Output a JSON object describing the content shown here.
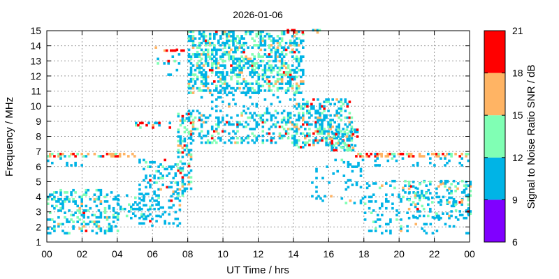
{
  "chart_data": {
    "type": "heatmap",
    "title": "2026-01-06",
    "xlabel": "UT Time / hrs",
    "ylabel": "Frequency / MHz",
    "colorbar_label": "Signal to Noise Ratio SNR / dB",
    "xlim": [
      0,
      24
    ],
    "ylim": [
      1,
      15
    ],
    "x_ticks": [
      "00",
      "02",
      "04",
      "06",
      "08",
      "10",
      "12",
      "14",
      "16",
      "18",
      "20",
      "22",
      "00"
    ],
    "y_ticks": [
      "1",
      "2",
      "3",
      "4",
      "5",
      "6",
      "7",
      "8",
      "9",
      "10",
      "11",
      "12",
      "13",
      "14",
      "15"
    ],
    "grid": true,
    "colorbar": {
      "ticks": [
        "6",
        "9",
        "12",
        "15",
        "18",
        "21"
      ],
      "bands": [
        {
          "from": 6,
          "to": 9,
          "color": "#8000ff"
        },
        {
          "from": 9,
          "to": 12,
          "color": "#00b4e6"
        },
        {
          "from": 12,
          "to": 15,
          "color": "#80ffb4"
        },
        {
          "from": 15,
          "to": 18,
          "color": "#ffb464"
        },
        {
          "from": 18,
          "to": 21,
          "color": "#ff0000"
        }
      ]
    },
    "clusters": [
      {
        "x": [
          0,
          5.0
        ],
        "y": [
          6.6,
          6.85
        ],
        "density": 0.55,
        "snr": [
          0,
          0.05,
          0.2,
          0.75
        ]
      },
      {
        "x": [
          0,
          2.0
        ],
        "y": [
          6.0,
          6.5
        ],
        "density": 0.08,
        "snr": [
          0,
          0.95,
          1,
          1
        ]
      },
      {
        "x": [
          0,
          4.0
        ],
        "y": [
          1.5,
          4.4
        ],
        "density": 0.28,
        "snr": [
          0,
          0.7,
          0.93,
          0.99
        ]
      },
      {
        "x": [
          4.0,
          6.3
        ],
        "y": [
          2.5,
          4.0
        ],
        "density": 0.18,
        "snr": [
          0,
          0.8,
          0.95,
          1
        ]
      },
      {
        "x": [
          5.2,
          7.6
        ],
        "y": [
          2.0,
          6.5
        ],
        "density": 0.22,
        "snr": [
          0,
          0.85,
          0.95,
          0.99
        ]
      },
      {
        "x": [
          5.0,
          7.0
        ],
        "y": [
          8.5,
          8.9
        ],
        "density": 0.3,
        "snr": [
          0,
          0.3,
          0.45,
          0.7
        ]
      },
      {
        "x": [
          6.0,
          7.5
        ],
        "y": [
          12.0,
          14.0
        ],
        "density": 0.05,
        "snr": [
          0,
          0.6,
          0.7,
          0.8
        ]
      },
      {
        "x": [
          6.5,
          8.0
        ],
        "y": [
          13.6,
          13.9
        ],
        "density": 0.3,
        "snr": [
          0,
          0.2,
          0.3,
          0.5
        ]
      },
      {
        "x": [
          7.4,
          8.2
        ],
        "y": [
          4.0,
          9.5
        ],
        "density": 0.35,
        "snr": [
          0,
          0.55,
          0.8,
          0.9
        ]
      },
      {
        "x": [
          8.0,
          14.5
        ],
        "y": [
          10.8,
          15.0
        ],
        "density": 0.42,
        "snr": [
          0,
          0.6,
          0.9,
          0.97
        ]
      },
      {
        "x": [
          8.0,
          14.0
        ],
        "y": [
          7.5,
          9.6
        ],
        "density": 0.3,
        "snr": [
          0,
          0.65,
          0.88,
          0.95
        ]
      },
      {
        "x": [
          8.0,
          14.0
        ],
        "y": [
          9.6,
          10.8
        ],
        "density": 0.08,
        "snr": [
          0,
          0.9,
          0.97,
          1
        ]
      },
      {
        "x": [
          13.5,
          15.6
        ],
        "y": [
          14.8,
          15.0
        ],
        "density": 0.35,
        "snr": [
          0,
          0.2,
          0.3,
          0.4
        ]
      },
      {
        "x": [
          14.0,
          17.3
        ],
        "y": [
          7.2,
          10.5
        ],
        "density": 0.4,
        "snr": [
          0,
          0.6,
          0.85,
          0.93
        ]
      },
      {
        "x": [
          15.0,
          18.0
        ],
        "y": [
          3.5,
          6.5
        ],
        "density": 0.1,
        "snr": [
          0,
          0.92,
          0.98,
          1
        ]
      },
      {
        "x": [
          16.0,
          17.6
        ],
        "y": [
          7.0,
          8.5
        ],
        "density": 0.4,
        "snr": [
          0,
          0.5,
          0.75,
          0.85
        ]
      },
      {
        "x": [
          17.5,
          24.0
        ],
        "y": [
          6.6,
          6.85
        ],
        "density": 0.5,
        "snr": [
          0,
          0.1,
          0.25,
          0.7
        ]
      },
      {
        "x": [
          17.5,
          24.0
        ],
        "y": [
          6.0,
          6.5
        ],
        "density": 0.12,
        "snr": [
          0,
          0.95,
          1,
          1
        ]
      },
      {
        "x": [
          18.0,
          24.0
        ],
        "y": [
          1.5,
          5.0
        ],
        "density": 0.12,
        "snr": [
          0,
          0.8,
          0.95,
          1
        ]
      },
      {
        "x": [
          20.5,
          24.0
        ],
        "y": [
          2.5,
          5.0
        ],
        "density": 0.25,
        "snr": [
          0,
          0.6,
          0.85,
          0.95
        ]
      }
    ]
  }
}
